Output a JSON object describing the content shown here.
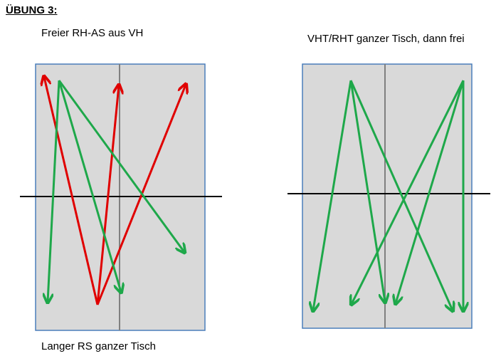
{
  "header": {
    "title": "ÜBUNG 3:"
  },
  "diagrams": [
    {
      "caption": "Freier RH-AS aus VH",
      "footer": "Langer RS ganzer Tisch"
    },
    {
      "caption": "VHT/RHT ganzer Tisch, dann frei"
    }
  ]
}
